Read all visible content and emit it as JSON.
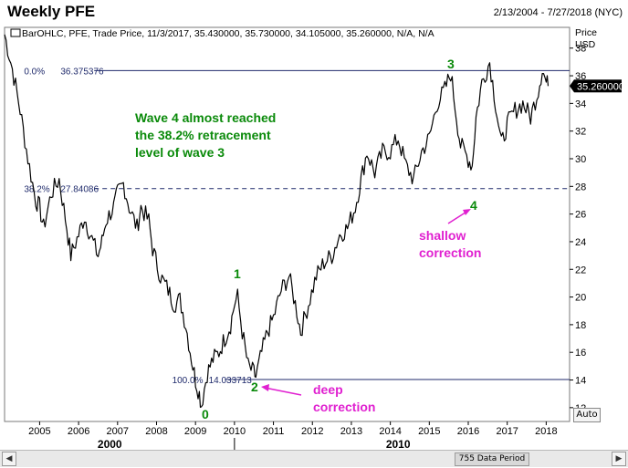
{
  "header": {
    "title": "Weekly PFE",
    "date_range": "2/13/2004 - 7/27/2018 (NYC)"
  },
  "legend": {
    "text": "BarOHLC, PFE, Trade Price, 11/3/2017, 35.430000, 35.730000, 34.105000, 35.260000, N/A, N/A"
  },
  "axis": {
    "price_label": "Price",
    "currency_label": "USD",
    "last_price": "35.260000",
    "auto_label": "Auto"
  },
  "scrollbar": {
    "period_label": "755 Data Period"
  },
  "colors": {
    "price_line": "#000000",
    "fib_line": "#1f2a6b",
    "wave_green": "#0a8a0a",
    "annotation_magenta": "#e020d0",
    "last_price_box": "#000000"
  },
  "chart_data": {
    "type": "line",
    "title": "Weekly PFE",
    "ylim": [
      11,
      39.5
    ],
    "xlim": [
      2004.1,
      2018.6
    ],
    "y_ticks": [
      "12",
      "14",
      "16",
      "18",
      "20",
      "22",
      "24",
      "26",
      "28",
      "30",
      "32",
      "34",
      "36",
      "38"
    ],
    "x_ticks": [
      "2005",
      "2006",
      "2007",
      "2008",
      "2009",
      "2010",
      "2011",
      "2012",
      "2013",
      "2014",
      "2015",
      "2016",
      "2017",
      "2018"
    ],
    "x_major_labels": [
      "2000",
      "2010"
    ],
    "series": [
      {
        "points": [
          [
            2004.1,
            39.0
          ],
          [
            2004.3,
            36.5
          ],
          [
            2004.5,
            33.5
          ],
          [
            2004.7,
            30.0
          ],
          [
            2004.9,
            27.0
          ],
          [
            2005.0,
            26.5
          ],
          [
            2005.1,
            25.0
          ],
          [
            2005.3,
            27.5
          ],
          [
            2005.5,
            28.5
          ],
          [
            2005.7,
            25.0
          ],
          [
            2005.8,
            23.0
          ],
          [
            2006.0,
            24.5
          ],
          [
            2006.15,
            25.8
          ],
          [
            2006.3,
            24.5
          ],
          [
            2006.5,
            23.0
          ],
          [
            2006.6,
            24.0
          ],
          [
            2006.7,
            25.5
          ],
          [
            2006.9,
            26.5
          ],
          [
            2007.0,
            27.5
          ],
          [
            2007.15,
            28.2
          ],
          [
            2007.3,
            26.5
          ],
          [
            2007.5,
            25.0
          ],
          [
            2007.6,
            26.5
          ],
          [
            2007.8,
            25.5
          ],
          [
            2007.9,
            23.5
          ],
          [
            2008.1,
            21.5
          ],
          [
            2008.3,
            20.5
          ],
          [
            2008.45,
            19.5
          ],
          [
            2008.6,
            19.8
          ],
          [
            2008.75,
            18.0
          ],
          [
            2008.9,
            15.5
          ],
          [
            2009.0,
            14.0
          ],
          [
            2009.1,
            13.0
          ],
          [
            2009.15,
            12.2
          ],
          [
            2009.3,
            14.5
          ],
          [
            2009.45,
            15.5
          ],
          [
            2009.6,
            16.0
          ],
          [
            2009.75,
            17.0
          ],
          [
            2009.9,
            18.0
          ],
          [
            2010.0,
            19.5
          ],
          [
            2010.08,
            20.0
          ],
          [
            2010.2,
            17.5
          ],
          [
            2010.35,
            15.0
          ],
          [
            2010.5,
            14.5
          ],
          [
            2010.55,
            14.2
          ],
          [
            2010.7,
            16.0
          ],
          [
            2010.85,
            17.5
          ],
          [
            2011.0,
            18.5
          ],
          [
            2011.2,
            20.5
          ],
          [
            2011.4,
            21.5
          ],
          [
            2011.6,
            19.0
          ],
          [
            2011.7,
            17.5
          ],
          [
            2011.9,
            19.5
          ],
          [
            2012.1,
            21.5
          ],
          [
            2012.3,
            22.5
          ],
          [
            2012.5,
            23.0
          ],
          [
            2012.7,
            24.5
          ],
          [
            2012.9,
            25.0
          ],
          [
            2013.1,
            26.5
          ],
          [
            2013.25,
            28.5
          ],
          [
            2013.4,
            30.5
          ],
          [
            2013.6,
            29.0
          ],
          [
            2013.8,
            30.5
          ],
          [
            2014.0,
            30.5
          ],
          [
            2014.2,
            31.5
          ],
          [
            2014.4,
            29.5
          ],
          [
            2014.6,
            28.5
          ],
          [
            2014.8,
            30.5
          ],
          [
            2015.0,
            31.5
          ],
          [
            2015.2,
            34.0
          ],
          [
            2015.4,
            35.0
          ],
          [
            2015.55,
            36.2
          ],
          [
            2015.7,
            33.0
          ],
          [
            2015.8,
            31.0
          ],
          [
            2016.0,
            30.0
          ],
          [
            2016.1,
            29.5
          ],
          [
            2016.2,
            33.0
          ],
          [
            2016.35,
            35.5
          ],
          [
            2016.55,
            37.0
          ],
          [
            2016.7,
            34.0
          ],
          [
            2016.85,
            31.0
          ],
          [
            2017.0,
            32.5
          ],
          [
            2017.2,
            33.5
          ],
          [
            2017.4,
            34.0
          ],
          [
            2017.6,
            33.0
          ],
          [
            2017.8,
            35.0
          ],
          [
            2017.9,
            36.5
          ],
          [
            2018.0,
            35.5
          ],
          [
            2018.05,
            35.26
          ]
        ]
      }
    ],
    "fib_levels": [
      {
        "label": "0.0%",
        "value": 36.375376,
        "value_text": "36.375376",
        "style": "solid"
      },
      {
        "label": "38.2%",
        "value": 27.84086,
        "value_text": "27.84086",
        "style": "dashed"
      },
      {
        "label": "100.0%",
        "value": 14.033713,
        "value_text": "14.033713",
        "style": "solid"
      }
    ],
    "wave_labels": [
      "0",
      "1",
      "2",
      "3",
      "4"
    ],
    "annotations": [
      {
        "text": [
          "Wave 4 almost reached",
          "the 38.2% retracement",
          "level of wave 3"
        ],
        "color": "green"
      },
      {
        "text": [
          "shallow",
          "correction"
        ],
        "color": "magenta"
      },
      {
        "text": [
          "deep",
          "correction"
        ],
        "color": "magenta"
      }
    ]
  }
}
